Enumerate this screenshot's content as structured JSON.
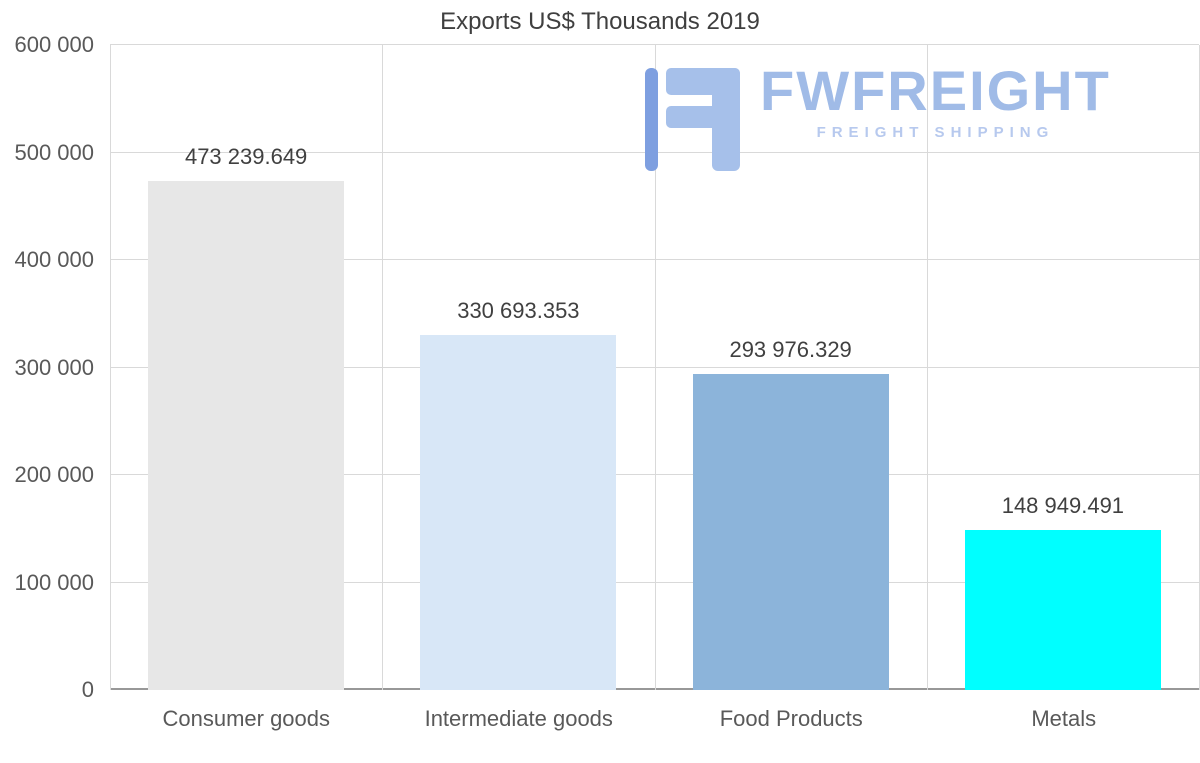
{
  "logo": {
    "name": "FWFREIGHT",
    "subtitle": "FREIGHT SHIPPING",
    "name_color": "#a0bbe7",
    "subtitle_color": "#b7c9ee",
    "icon_color": "#a6c0ea",
    "icon_dark_color": "#7e9fe0"
  },
  "chart_data": {
    "type": "bar",
    "title": "Exports US$ Thousands 2019",
    "categories": [
      "Consumer goods",
      "Intermediate goods",
      "Food Products",
      "Metals"
    ],
    "values": [
      473239.649,
      330693.353,
      293976.329,
      148949.491
    ],
    "value_labels": [
      "473 239.649",
      "330 693.353",
      "293 976.329",
      "148 949.491"
    ],
    "bar_colors": [
      "#e7e7e7",
      "#d8e7f7",
      "#8cb4da",
      "#00ffff"
    ],
    "xlabel": "",
    "ylabel": "",
    "ylim": [
      0,
      600000
    ],
    "ytick_values": [
      0,
      100000,
      200000,
      300000,
      400000,
      500000,
      600000
    ],
    "ytick_labels": [
      "0",
      "100 000",
      "200 000",
      "300 000",
      "400 000",
      "500 000",
      "600 000"
    ],
    "grid": "both",
    "legend": "none"
  }
}
